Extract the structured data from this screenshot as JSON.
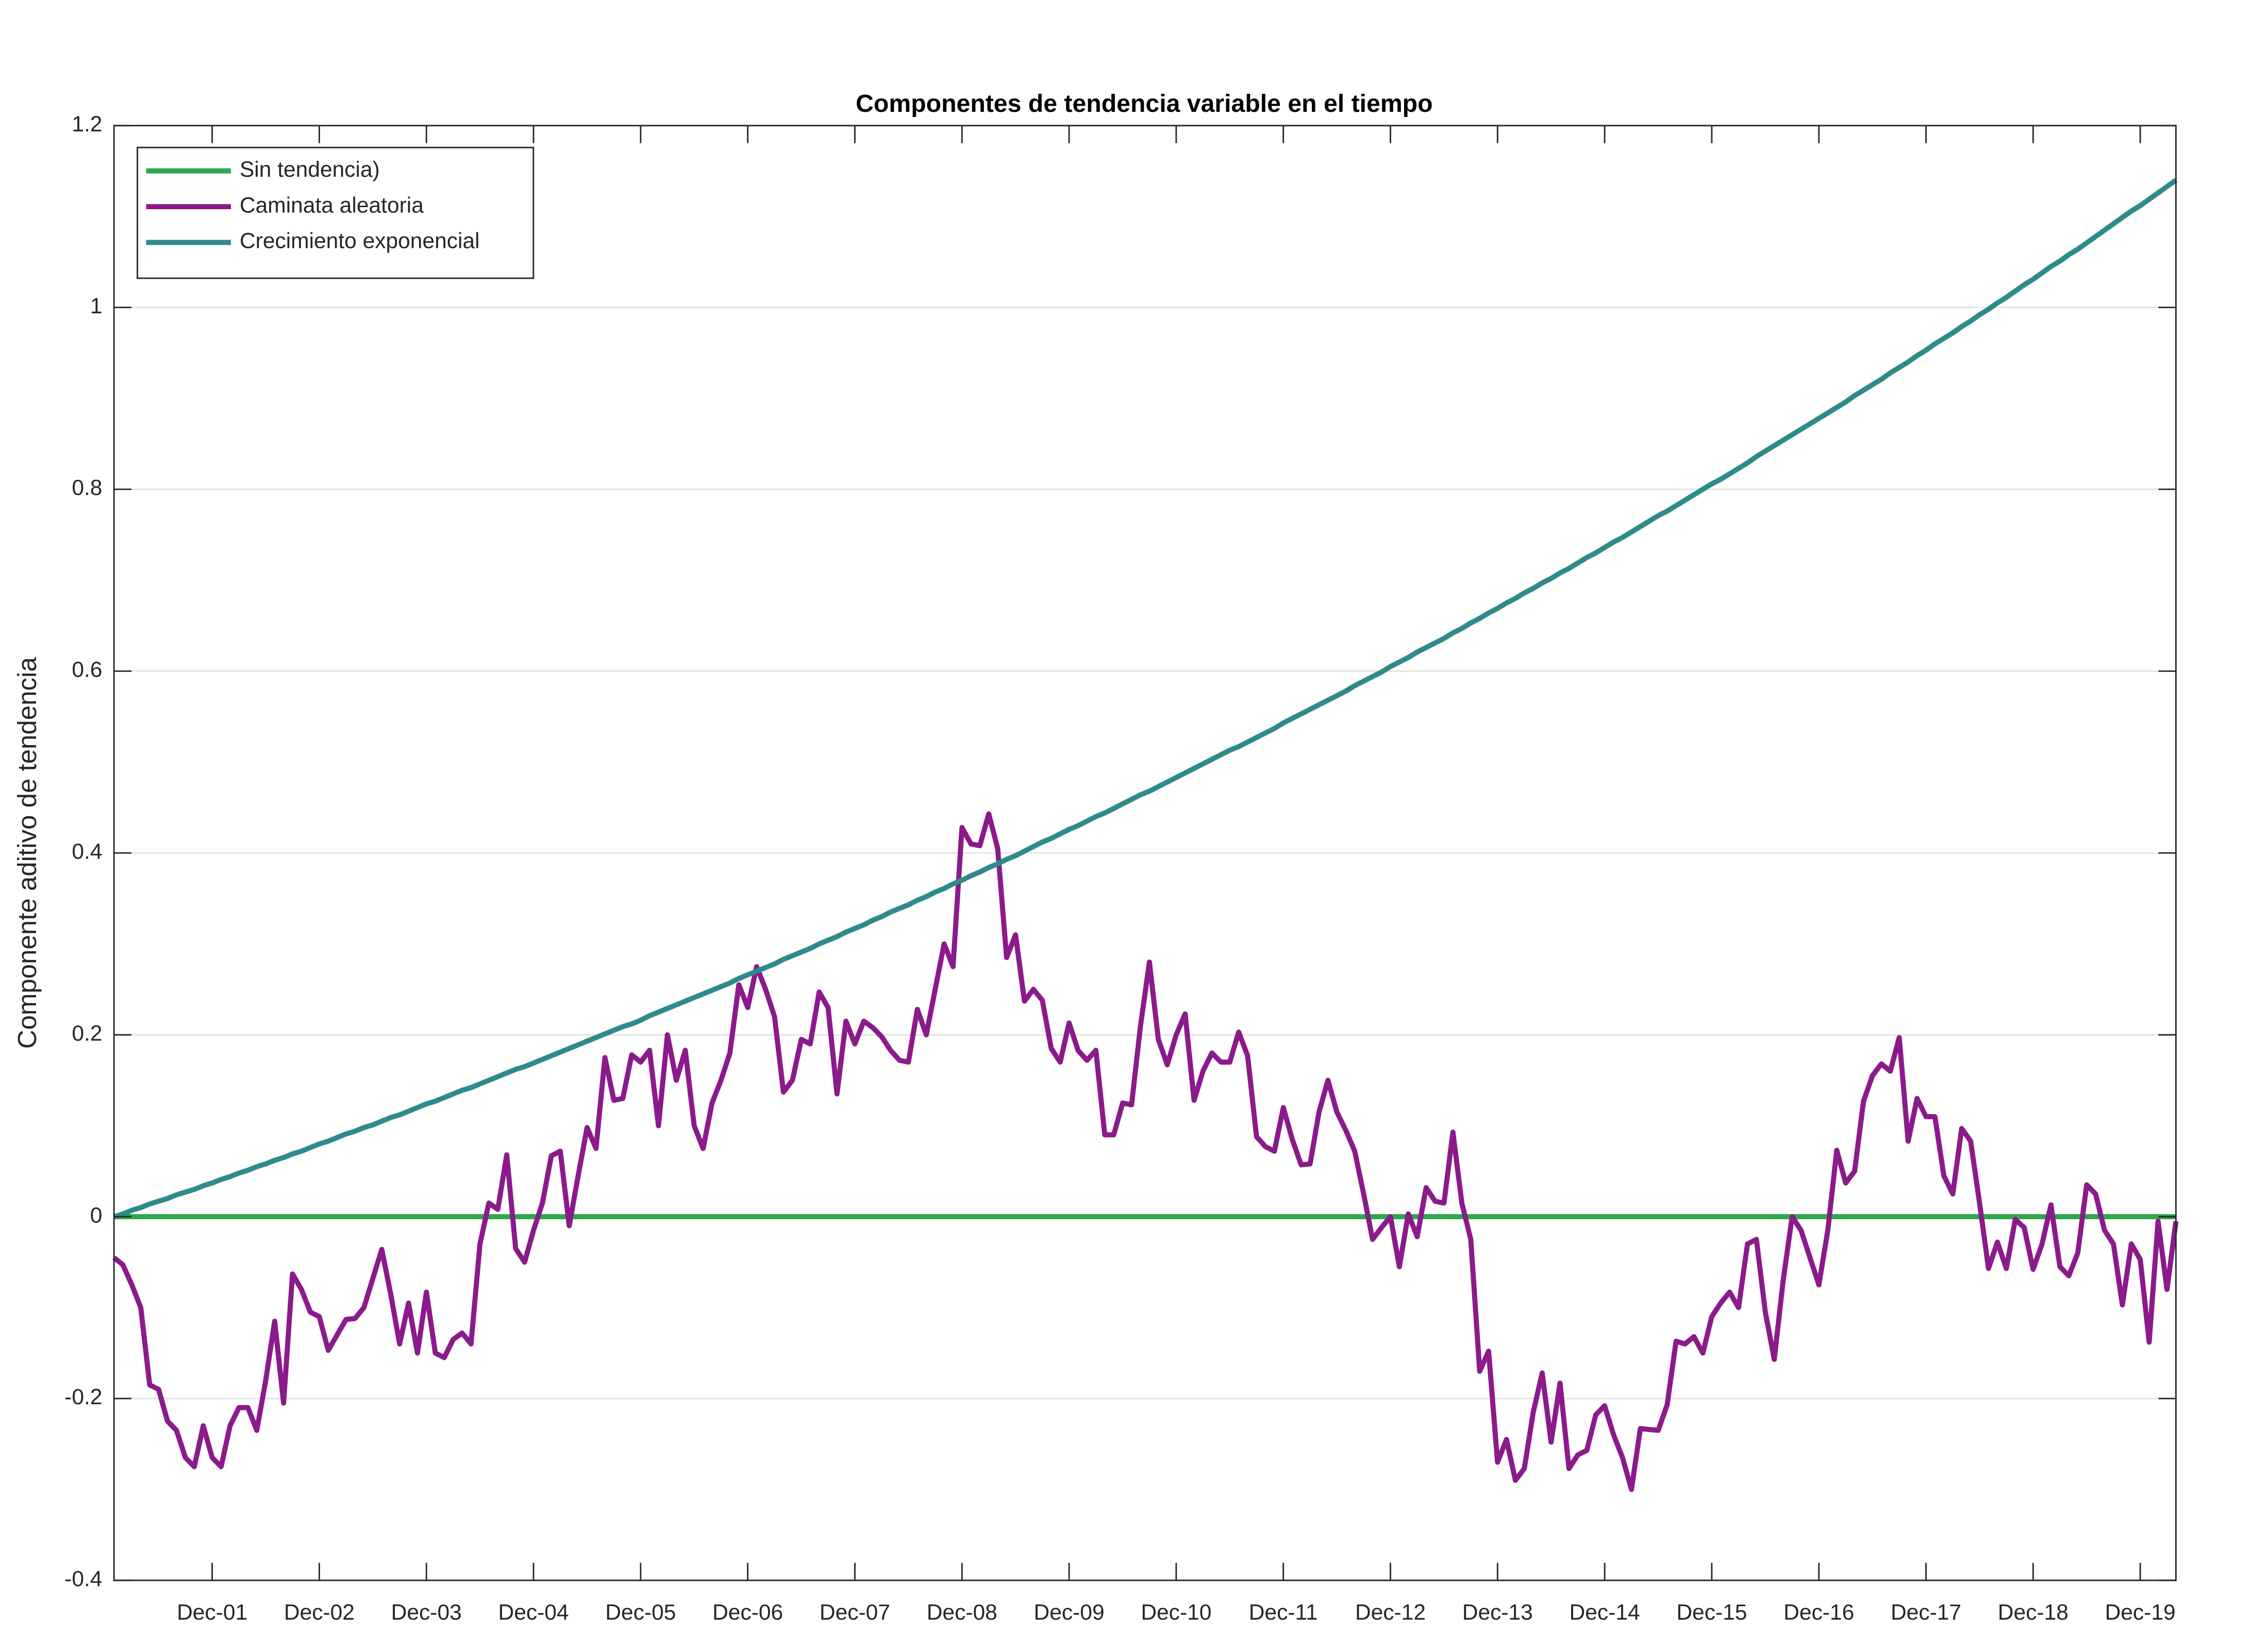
{
  "chart_data": {
    "type": "line",
    "title": "Componentes de tendencia variable en el tiempo",
    "y_label": "Componente aditivo de tendencia",
    "categories": [
      null,
      null,
      null,
      null,
      null,
      null,
      null,
      null,
      null,
      null,
      null,
      "Dec-01",
      null,
      null,
      null,
      null,
      null,
      null,
      null,
      null,
      null,
      null,
      null,
      "Dec-02",
      null,
      null,
      null,
      null,
      null,
      null,
      null,
      null,
      null,
      null,
      null,
      "Dec-03",
      null,
      null,
      null,
      null,
      null,
      null,
      null,
      null,
      null,
      null,
      null,
      "Dec-04",
      null,
      null,
      null,
      null,
      null,
      null,
      null,
      null,
      null,
      null,
      null,
      "Dec-05",
      null,
      null,
      null,
      null,
      null,
      null,
      null,
      null,
      null,
      null,
      null,
      "Dec-06",
      null,
      null,
      null,
      null,
      null,
      null,
      null,
      null,
      null,
      null,
      null,
      "Dec-07",
      null,
      null,
      null,
      null,
      null,
      null,
      null,
      null,
      null,
      null,
      null,
      "Dec-08",
      null,
      null,
      null,
      null,
      null,
      null,
      null,
      null,
      null,
      null,
      null,
      "Dec-09",
      null,
      null,
      null,
      null,
      null,
      null,
      null,
      null,
      null,
      null,
      null,
      "Dec-10",
      null,
      null,
      null,
      null,
      null,
      null,
      null,
      null,
      null,
      null,
      null,
      "Dec-11",
      null,
      null,
      null,
      null,
      null,
      null,
      null,
      null,
      null,
      null,
      null,
      "Dec-12",
      null,
      null,
      null,
      null,
      null,
      null,
      null,
      null,
      null,
      null,
      null,
      "Dec-13",
      null,
      null,
      null,
      null,
      null,
      null,
      null,
      null,
      null,
      null,
      null,
      "Dec-14",
      null,
      null,
      null,
      null,
      null,
      null,
      null,
      null,
      null,
      null,
      null,
      "Dec-15",
      null,
      null,
      null,
      null,
      null,
      null,
      null,
      null,
      null,
      null,
      null,
      "Dec-16",
      null,
      null,
      null,
      null,
      null,
      null,
      null,
      null,
      null,
      null,
      null,
      "Dec-17",
      null,
      null,
      null,
      null,
      null,
      null,
      null,
      null,
      null,
      null,
      null,
      "Dec-18",
      null,
      null,
      null,
      null,
      null,
      null,
      null,
      null,
      null,
      null,
      null,
      "Dec-19",
      null,
      null,
      null,
      null
    ],
    "series": [
      {
        "name": "Sin tendencia)",
        "color": "#2ea84a",
        "values": [
          0,
          0,
          0,
          0,
          0,
          0,
          0,
          0,
          0,
          0,
          0,
          0,
          0,
          0,
          0,
          0,
          0,
          0,
          0,
          0,
          0,
          0,
          0,
          0,
          0,
          0,
          0,
          0,
          0,
          0,
          0,
          0,
          0,
          0,
          0,
          0,
          0,
          0,
          0,
          0,
          0,
          0,
          0,
          0,
          0,
          0,
          0,
          0,
          0,
          0,
          0,
          0,
          0,
          0,
          0,
          0,
          0,
          0,
          0,
          0,
          0,
          0,
          0,
          0,
          0,
          0,
          0,
          0,
          0,
          0,
          0,
          0,
          0,
          0,
          0,
          0,
          0,
          0,
          0,
          0,
          0,
          0,
          0,
          0,
          0,
          0,
          0,
          0,
          0,
          0,
          0,
          0,
          0,
          0,
          0,
          0,
          0,
          0,
          0,
          0,
          0,
          0,
          0,
          0,
          0,
          0,
          0,
          0,
          0,
          0,
          0,
          0,
          0,
          0,
          0,
          0,
          0,
          0,
          0,
          0,
          0,
          0,
          0,
          0,
          0,
          0,
          0,
          0,
          0,
          0,
          0,
          0,
          0,
          0,
          0,
          0,
          0,
          0,
          0,
          0,
          0,
          0,
          0,
          0,
          0,
          0,
          0,
          0,
          0,
          0,
          0,
          0,
          0,
          0,
          0,
          0,
          0,
          0,
          0,
          0,
          0,
          0,
          0,
          0,
          0,
          0,
          0,
          0,
          0,
          0,
          0,
          0,
          0,
          0,
          0,
          0,
          0,
          0,
          0,
          0,
          0,
          0,
          0,
          0,
          0,
          0,
          0,
          0,
          0,
          0,
          0,
          0,
          0,
          0,
          0,
          0,
          0,
          0,
          0,
          0,
          0,
          0,
          0,
          0,
          0,
          0,
          0,
          0,
          0,
          0,
          0,
          0,
          0,
          0,
          0,
          0,
          0,
          0,
          0,
          0,
          0,
          0,
          0,
          0,
          0,
          0,
          0,
          0,
          0,
          0,
          0,
          0
        ]
      },
      {
        "name": "Caminata aleatoria",
        "color": "#8b1a8b",
        "values": [
          -0.045,
          -0.053,
          -0.075,
          -0.1,
          -0.185,
          -0.19,
          -0.225,
          -0.235,
          -0.265,
          -0.275,
          -0.23,
          -0.265,
          -0.275,
          -0.23,
          -0.21,
          -0.21,
          -0.235,
          -0.18,
          -0.115,
          -0.205,
          -0.063,
          -0.08,
          -0.105,
          -0.11,
          -0.147,
          -0.13,
          -0.113,
          -0.112,
          -0.1,
          -0.068,
          -0.036,
          -0.085,
          -0.14,
          -0.095,
          -0.15,
          -0.083,
          -0.15,
          -0.155,
          -0.135,
          -0.128,
          -0.14,
          -0.03,
          0.015,
          0.008,
          0.068,
          -0.035,
          -0.05,
          -0.015,
          0.015,
          0.067,
          0.072,
          -0.01,
          0.045,
          0.098,
          0.075,
          0.175,
          0.128,
          0.13,
          0.178,
          0.17,
          0.183,
          0.1,
          0.2,
          0.15,
          0.183,
          0.1,
          0.075,
          0.125,
          0.15,
          0.18,
          0.255,
          0.23,
          0.275,
          0.25,
          0.22,
          0.137,
          0.15,
          0.195,
          0.19,
          0.247,
          0.23,
          0.135,
          0.215,
          0.19,
          0.215,
          0.208,
          0.198,
          0.183,
          0.172,
          0.17,
          0.228,
          0.2,
          0.25,
          0.3,
          0.275,
          0.428,
          0.41,
          0.408,
          0.443,
          0.405,
          0.285,
          0.31,
          0.237,
          0.25,
          0.238,
          0.185,
          0.17,
          0.213,
          0.183,
          0.172,
          0.183,
          0.09,
          0.09,
          0.125,
          0.123,
          0.21,
          0.28,
          0.195,
          0.167,
          0.2,
          0.223,
          0.128,
          0.16,
          0.18,
          0.17,
          0.17,
          0.203,
          0.177,
          0.088,
          0.077,
          0.072,
          0.12,
          0.085,
          0.057,
          0.058,
          0.115,
          0.15,
          0.115,
          0.095,
          0.072,
          0.025,
          -0.025,
          -0.012,
          0.0,
          -0.055,
          0.003,
          -0.022,
          0.032,
          0.017,
          0.015,
          0.093,
          0.015,
          -0.025,
          -0.17,
          -0.148,
          -0.27,
          -0.245,
          -0.29,
          -0.277,
          -0.215,
          -0.172,
          -0.248,
          -0.183,
          -0.277,
          -0.262,
          -0.257,
          -0.218,
          -0.208,
          -0.24,
          -0.265,
          -0.3,
          -0.233,
          -0.234,
          -0.235,
          -0.207,
          -0.137,
          -0.14,
          -0.132,
          -0.15,
          -0.11,
          -0.095,
          -0.083,
          -0.1,
          -0.03,
          -0.025,
          -0.105,
          -0.157,
          -0.07,
          0.0,
          -0.015,
          -0.045,
          -0.075,
          -0.015,
          0.073,
          0.037,
          0.05,
          0.127,
          0.155,
          0.168,
          0.16,
          0.197,
          0.083,
          0.13,
          0.11,
          0.11,
          0.045,
          0.025,
          0.097,
          0.083,
          0.015,
          -0.057,
          -0.028,
          -0.057,
          -0.003,
          -0.012,
          -0.058,
          -0.03,
          0.013,
          -0.055,
          -0.065,
          -0.04,
          0.035,
          0.025,
          -0.015,
          -0.03,
          -0.097,
          -0.03,
          -0.047,
          -0.138,
          -0.005,
          -0.08,
          -0.005
        ]
      },
      {
        "name": "Crecimiento exponencial",
        "color": "#2e8b8b",
        "values": [
          0,
          0.003,
          0.007,
          0.01,
          0.014,
          0.017,
          0.02,
          0.024,
          0.027,
          0.03,
          0.034,
          0.037,
          0.041,
          0.044,
          0.048,
          0.051,
          0.055,
          0.058,
          0.062,
          0.065,
          0.069,
          0.072,
          0.076,
          0.08,
          0.083,
          0.087,
          0.091,
          0.094,
          0.098,
          0.101,
          0.105,
          0.109,
          0.112,
          0.116,
          0.12,
          0.124,
          0.127,
          0.131,
          0.135,
          0.139,
          0.142,
          0.146,
          0.15,
          0.154,
          0.158,
          0.162,
          0.165,
          0.169,
          0.173,
          0.177,
          0.181,
          0.185,
          0.189,
          0.193,
          0.197,
          0.201,
          0.205,
          0.209,
          0.212,
          0.216,
          0.221,
          0.225,
          0.229,
          0.233,
          0.237,
          0.241,
          0.245,
          0.249,
          0.253,
          0.257,
          0.262,
          0.266,
          0.27,
          0.274,
          0.278,
          0.283,
          0.287,
          0.291,
          0.295,
          0.3,
          0.304,
          0.308,
          0.313,
          0.317,
          0.321,
          0.326,
          0.33,
          0.335,
          0.339,
          0.343,
          0.348,
          0.352,
          0.357,
          0.361,
          0.366,
          0.37,
          0.375,
          0.379,
          0.384,
          0.388,
          0.393,
          0.397,
          0.402,
          0.407,
          0.412,
          0.416,
          0.421,
          0.426,
          0.43,
          0.435,
          0.44,
          0.444,
          0.449,
          0.454,
          0.459,
          0.464,
          0.468,
          0.473,
          0.478,
          0.483,
          0.488,
          0.493,
          0.498,
          0.503,
          0.508,
          0.513,
          0.517,
          0.522,
          0.527,
          0.532,
          0.537,
          0.543,
          0.548,
          0.553,
          0.558,
          0.563,
          0.568,
          0.573,
          0.578,
          0.584,
          0.589,
          0.594,
          0.599,
          0.605,
          0.61,
          0.615,
          0.621,
          0.626,
          0.631,
          0.636,
          0.642,
          0.647,
          0.653,
          0.658,
          0.664,
          0.669,
          0.675,
          0.68,
          0.686,
          0.691,
          0.697,
          0.702,
          0.708,
          0.713,
          0.719,
          0.725,
          0.73,
          0.736,
          0.742,
          0.747,
          0.753,
          0.759,
          0.765,
          0.771,
          0.776,
          0.782,
          0.788,
          0.794,
          0.8,
          0.806,
          0.811,
          0.817,
          0.823,
          0.829,
          0.836,
          0.842,
          0.848,
          0.854,
          0.86,
          0.866,
          0.872,
          0.878,
          0.884,
          0.89,
          0.896,
          0.903,
          0.909,
          0.915,
          0.921,
          0.928,
          0.934,
          0.94,
          0.947,
          0.953,
          0.96,
          0.966,
          0.972,
          0.979,
          0.985,
          0.992,
          0.998,
          1.005,
          1.011,
          1.018,
          1.025,
          1.031,
          1.038,
          1.045,
          1.051,
          1.058,
          1.064,
          1.071,
          1.078,
          1.085,
          1.092,
          1.099,
          1.106,
          1.112,
          1.119,
          1.126,
          1.133,
          1.14
        ]
      }
    ],
    "ylim": [
      -0.4,
      1.2
    ],
    "yticks": [
      -0.4,
      -0.2,
      0,
      0.2,
      0.4,
      0.6,
      0.8,
      1,
      1.2
    ],
    "grid": true,
    "legend": "northwest"
  }
}
